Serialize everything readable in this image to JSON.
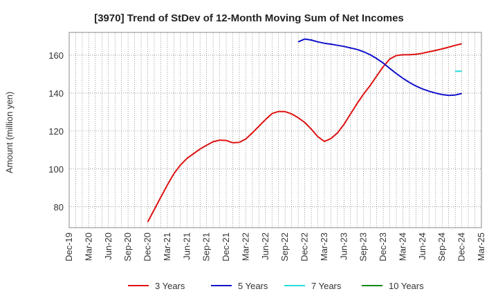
{
  "chart_data": {
    "type": "line",
    "title": "[3970]  Trend of StDev of 12-Month Moving Sum of Net Incomes",
    "ylabel": "Amount (million yen)",
    "xlabel": "",
    "ylim": [
      69,
      172
    ],
    "y_ticks": [
      80,
      100,
      120,
      140,
      160
    ],
    "x_ticks": [
      "Dec-19",
      "Mar-20",
      "Jun-20",
      "Sep-20",
      "Dec-20",
      "Mar-21",
      "Jun-21",
      "Sep-21",
      "Dec-21",
      "Mar-22",
      "Jun-22",
      "Sep-22",
      "Dec-22",
      "Mar-23",
      "Jun-23",
      "Sep-23",
      "Dec-23",
      "Mar-24",
      "Jun-24",
      "Sep-24",
      "Dec-24",
      "Mar-25"
    ],
    "grid": true,
    "legend_position": "bottom",
    "series": [
      {
        "name": "3 Years",
        "color": "#dd1111",
        "points": [
          [
            "Dec-20",
            72
          ],
          [
            "Jan-21",
            78.5
          ],
          [
            "Feb-21",
            85
          ],
          [
            "Mar-21",
            91.5
          ],
          [
            "Apr-21",
            97.5
          ],
          [
            "May-21",
            102
          ],
          [
            "Jun-21",
            105.5
          ],
          [
            "Jul-21",
            108
          ],
          [
            "Aug-21",
            110.5
          ],
          [
            "Sep-21",
            112.5
          ],
          [
            "Oct-21",
            114.3
          ],
          [
            "Nov-21",
            115.2
          ],
          [
            "Dec-21",
            115
          ],
          [
            "Jan-22",
            113.8
          ],
          [
            "Feb-22",
            114
          ],
          [
            "Mar-22",
            115.8
          ],
          [
            "Apr-22",
            119
          ],
          [
            "May-22",
            122.5
          ],
          [
            "Jun-22",
            126
          ],
          [
            "Jul-22",
            129.2
          ],
          [
            "Aug-22",
            130.3
          ],
          [
            "Sep-22",
            130.2
          ],
          [
            "Oct-22",
            129
          ],
          [
            "Nov-22",
            127
          ],
          [
            "Dec-22",
            124.5
          ],
          [
            "Jan-23",
            121
          ],
          [
            "Feb-23",
            117
          ],
          [
            "Mar-23",
            114.5
          ],
          [
            "Apr-23",
            116
          ],
          [
            "May-23",
            119
          ],
          [
            "Jun-23",
            123.5
          ],
          [
            "Jul-23",
            129
          ],
          [
            "Aug-23",
            134.5
          ],
          [
            "Sep-23",
            139.5
          ],
          [
            "Oct-23",
            144
          ],
          [
            "Nov-23",
            149
          ],
          [
            "Dec-23",
            154
          ],
          [
            "Jan-24",
            158
          ],
          [
            "Feb-24",
            159.8
          ],
          [
            "Mar-24",
            160.2
          ],
          [
            "Apr-24",
            160.2
          ],
          [
            "May-24",
            160.5
          ],
          [
            "Jun-24",
            161
          ],
          [
            "Jul-24",
            161.8
          ],
          [
            "Aug-24",
            162.5
          ],
          [
            "Sep-24",
            163.3
          ],
          [
            "Oct-24",
            164.2
          ],
          [
            "Nov-24",
            165.2
          ],
          [
            "Dec-24",
            166
          ]
        ]
      },
      {
        "name": "5 Years",
        "color": "#1111cc",
        "points": [
          [
            "Nov-22",
            167
          ],
          [
            "Dec-22",
            168.5
          ],
          [
            "Jan-23",
            168
          ],
          [
            "Feb-23",
            167
          ],
          [
            "Mar-23",
            166.3
          ],
          [
            "Apr-23",
            165.8
          ],
          [
            "May-23",
            165.2
          ],
          [
            "Jun-23",
            164.6
          ],
          [
            "Jul-23",
            163.8
          ],
          [
            "Aug-23",
            163
          ],
          [
            "Sep-23",
            161.8
          ],
          [
            "Oct-23",
            160.2
          ],
          [
            "Nov-23",
            158.2
          ],
          [
            "Dec-23",
            155.8
          ],
          [
            "Jan-24",
            153
          ],
          [
            "Feb-24",
            150.3
          ],
          [
            "Mar-24",
            147.8
          ],
          [
            "Apr-24",
            145.6
          ],
          [
            "May-24",
            143.7
          ],
          [
            "Jun-24",
            142.2
          ],
          [
            "Jul-24",
            141
          ],
          [
            "Aug-24",
            140
          ],
          [
            "Sep-24",
            139.2
          ],
          [
            "Oct-24",
            138.8
          ],
          [
            "Nov-24",
            139
          ],
          [
            "Dec-24",
            139.8
          ]
        ]
      },
      {
        "name": "7 Years",
        "color": "#22dddd",
        "points": [
          [
            "Nov-24",
            151.5
          ],
          [
            "Dec-24",
            151.5
          ]
        ]
      },
      {
        "name": "10 Years",
        "color": "#118811",
        "points": []
      }
    ]
  }
}
